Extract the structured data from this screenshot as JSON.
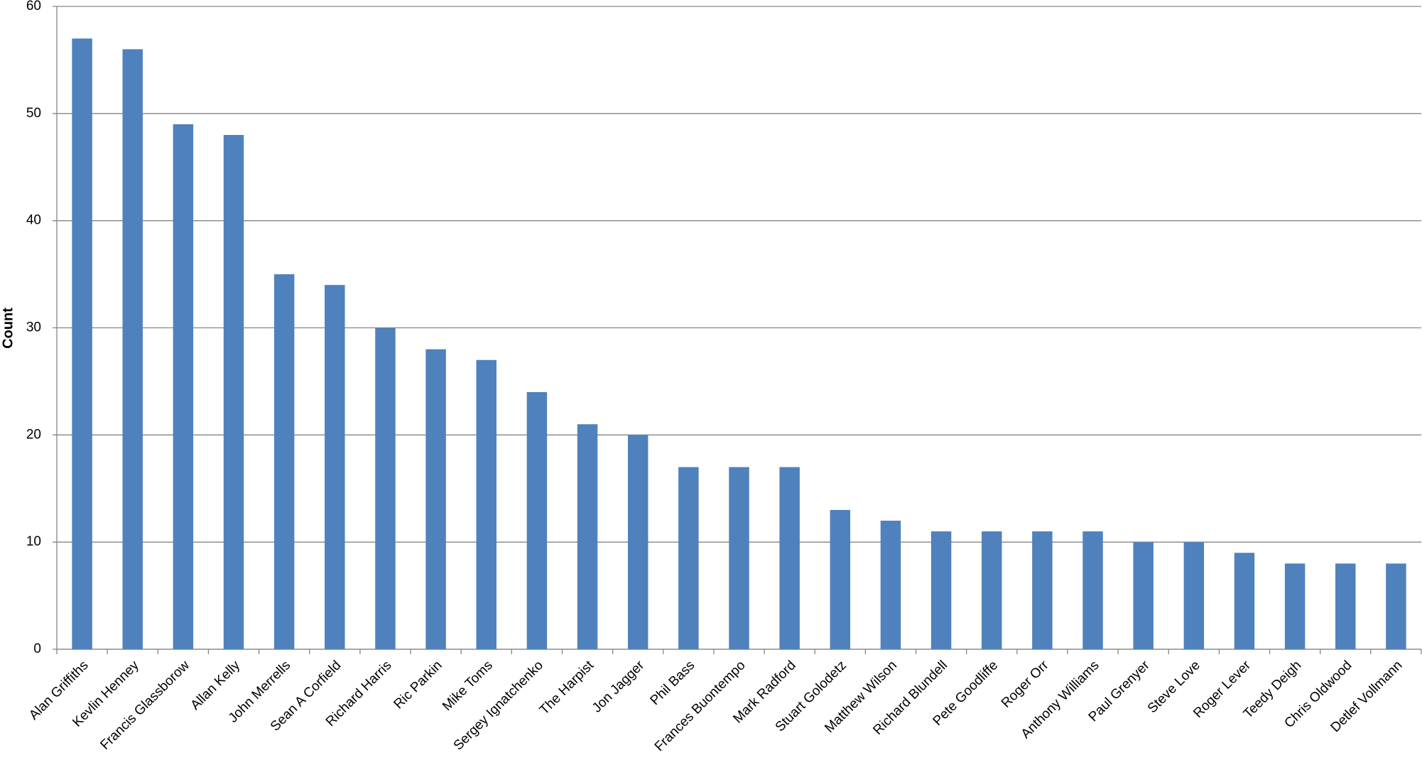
{
  "chart_data": {
    "type": "bar",
    "y_label": "Count",
    "categories": [
      "Alan Griffiths",
      "Kevlin Henney",
      "Francis Glassborow",
      "Allan Kelly",
      "John Merrells",
      "Sean A Corfield",
      "Richard Harris",
      "Ric Parkin",
      "Mike Toms",
      "Sergey Ignatchenko",
      "The Harpist",
      "Jon Jagger",
      "Phil Bass",
      "Frances Buontempo",
      "Mark Radford",
      "Stuart Golodetz",
      "Matthew Wilson",
      "Richard Blundell",
      "Pete Goodliffe",
      "Roger Orr",
      "Anthony Williams",
      "Paul Grenyer",
      "Steve Love",
      "Roger Lever",
      "Teedy Deigh",
      "Chris Oldwood",
      "Detlef Vollmann"
    ],
    "values": [
      57,
      56,
      49,
      48,
      35,
      34,
      30,
      28,
      27,
      24,
      21,
      20,
      17,
      17,
      17,
      13,
      12,
      11,
      11,
      11,
      11,
      10,
      10,
      9,
      8,
      8,
      8
    ],
    "color": "#4f81bd",
    "ylim": [
      0,
      60
    ],
    "yticks": [
      0,
      10,
      20,
      30,
      40,
      50,
      60
    ],
    "grid": true
  }
}
